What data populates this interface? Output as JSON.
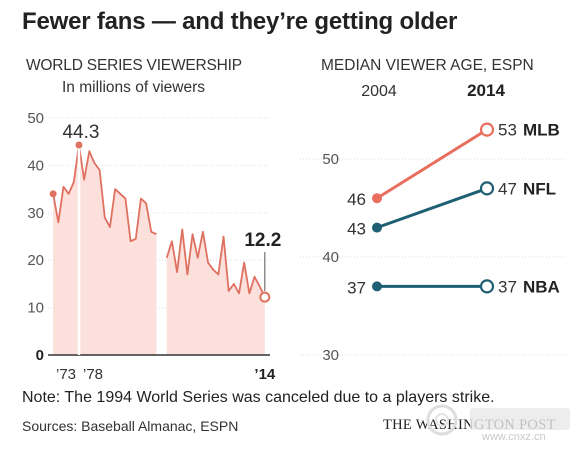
{
  "headline": "Fewer fans — and they’re getting older",
  "chart_data": [
    {
      "type": "area",
      "title": "WORLD SERIES VIEWERSHIP",
      "subtitle": "In millions of viewers",
      "ylim": [
        0,
        50
      ],
      "yticks": [
        0,
        10,
        20,
        30,
        40,
        50
      ],
      "xlim": [
        1972,
        2015
      ],
      "x_tick_labels": [
        {
          "x": 1973,
          "label": "’73"
        },
        {
          "x": 1978,
          "label": "’78"
        },
        {
          "x": 2014,
          "label": "’14"
        }
      ],
      "x": [
        1973,
        1974,
        1975,
        1976,
        1977,
        1978,
        1979,
        1980,
        1981,
        1982,
        1983,
        1984,
        1985,
        1986,
        1987,
        1988,
        1989,
        1990,
        1991,
        1992,
        1993,
        1995,
        1996,
        1997,
        1998,
        1999,
        2000,
        2001,
        2002,
        2003,
        2004,
        2005,
        2006,
        2007,
        2008,
        2009,
        2010,
        2011,
        2012,
        2013,
        2014
      ],
      "values": [
        34,
        28,
        35.5,
        34,
        36.5,
        44.3,
        37,
        43,
        40.5,
        39,
        29,
        27,
        35,
        34,
        33,
        24,
        24.5,
        33,
        32,
        26,
        25.5,
        20.5,
        24,
        17.5,
        26.5,
        17,
        25.5,
        20.5,
        26,
        19.5,
        18,
        17,
        25,
        13.5,
        15,
        13,
        19.5,
        13,
        16.5,
        14.5,
        12.2
      ],
      "gap": {
        "after_x": 1993,
        "reason": "1994 World Series canceled"
      },
      "annotations": [
        {
          "x": 1978,
          "label": "44.3",
          "bold": false
        },
        {
          "x": 2014,
          "label": "12.2",
          "bold": true
        }
      ],
      "colors": {
        "line": "#e07060",
        "fill": "#fbe0db"
      }
    },
    {
      "type": "slope",
      "title": "MEDIAN VIEWER AGE, ESPN",
      "categories": [
        "2004",
        "2014"
      ],
      "ylim": [
        30,
        55
      ],
      "yticks": [
        30,
        40,
        50
      ],
      "series": [
        {
          "name": "MLB",
          "values": [
            46,
            53
          ],
          "color": "#e96e5e"
        },
        {
          "name": "NFL",
          "values": [
            43,
            47
          ],
          "color": "#1f5f73"
        },
        {
          "name": "NBA",
          "values": [
            37,
            37
          ],
          "color": "#1f5f73"
        }
      ]
    }
  ],
  "footer": {
    "note": "Note: The 1994 World Series was canceled due to a players strike.",
    "sources": "Sources: Baseball Almanac, ESPN",
    "credit": "THE WASHINGTON POST"
  },
  "watermark": {
    "text": "www.cnxz.cn"
  }
}
